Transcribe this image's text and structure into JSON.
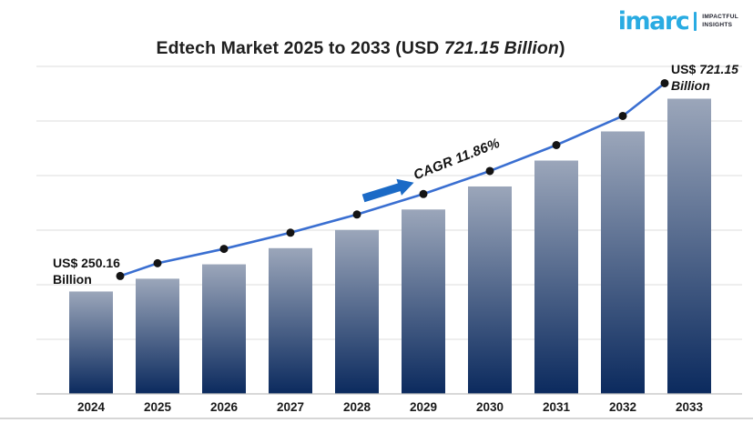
{
  "logo": {
    "wordmark": "imarc",
    "tagline_line1": "IMPACTFUL",
    "tagline_line2": "INSIGHTS",
    "brand_color": "#29abe2"
  },
  "title": {
    "text_prefix": "Edtech Market 2025 to 2033 (USD ",
    "text_italic": "721.15 Billion",
    "text_suffix": ")"
  },
  "annotations": {
    "start_label_line1": "US$ 250.16",
    "start_label_line2": "Billion",
    "end_label_prefix": "US$ ",
    "end_label_value": "721.15",
    "end_label_line2": "Billion",
    "cagr_label": "CAGR 11.86%"
  },
  "chart_data": {
    "type": "bar",
    "overlay": "line",
    "title": "Edtech Market 2025 to 2033 (USD 721.15 Billion)",
    "categories": [
      "2024",
      "2025",
      "2026",
      "2027",
      "2028",
      "2029",
      "2030",
      "2031",
      "2032",
      "2033"
    ],
    "values": [
      250.16,
      281.39,
      316.52,
      356.04,
      400.49,
      450.49,
      506.74,
      570.01,
      641.18,
      721.15
    ],
    "values_note": "Only 2024 (US$ 250.16 Billion) and 2033 (US$ 721.15 Billion) are labeled in the figure; intermediate values estimated from bar heights / CAGR trend.",
    "unit": "USD Billion",
    "cagr_percent": 11.86,
    "labeled_points": [
      {
        "category": "2024",
        "label": "US$ 250.16 Billion",
        "value": 250.16
      },
      {
        "category": "2033",
        "label": "US$ 721.15 Billion",
        "value": 721.15
      }
    ],
    "xlabel": "",
    "ylabel": "",
    "ylim": [
      0,
      800
    ],
    "grid": true,
    "legend": "none",
    "colors": {
      "bar_gradient_top": "#9ba6ba",
      "bar_gradient_bottom": "#0b2a5e",
      "trend_line": "#3a6fd1",
      "marker": "#141414",
      "arrow": "#1b6ac6",
      "gridline": "#dcdcdc",
      "axis_line": "#c0c0c0",
      "label_text": "#1a1a1a"
    }
  }
}
